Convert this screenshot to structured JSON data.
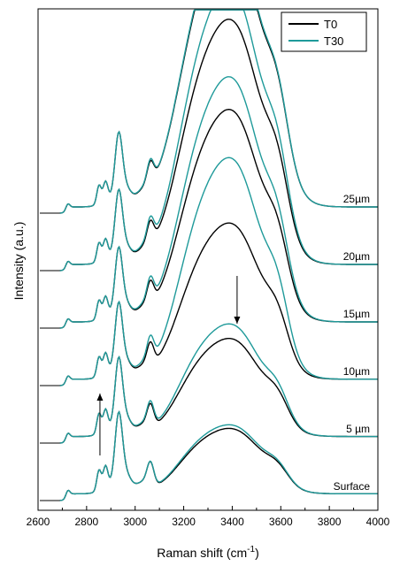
{
  "chart_data": {
    "type": "line",
    "xlabel": "Raman shift (cm",
    "xlabel_sup": "-1",
    "xlabel_close": ")",
    "ylabel": "Intensity (a.u.)",
    "xlim": [
      2600,
      4000
    ],
    "xticks": [
      "2600",
      "2800",
      "3000",
      "3200",
      "3400",
      "3600",
      "3800",
      "4000"
    ],
    "legend": {
      "position": "top-right",
      "entries": [
        {
          "label": "T0",
          "color": "#000000"
        },
        {
          "label": "T30",
          "color": "#1f9a9a"
        }
      ]
    },
    "arrows": [
      {
        "x": 2855,
        "direction": "up"
      },
      {
        "x": 3420,
        "direction": "down"
      }
    ],
    "offsets": [
      {
        "label": "Surface",
        "baseline": 0,
        "t0": {
          "ch": 0.34,
          "sh": 0.16,
          "oh": 0.36
        },
        "t30": {
          "ch": 0.34,
          "sh": 0.16,
          "oh": 0.38
        }
      },
      {
        "label": "5 µm",
        "baseline": 1,
        "t0": {
          "ch": 0.33,
          "sh": 0.15,
          "oh": 0.54
        },
        "t30": {
          "ch": 0.33,
          "sh": 0.16,
          "oh": 0.62
        }
      },
      {
        "label": "10µm",
        "baseline": 2,
        "t0": {
          "ch": 0.32,
          "sh": 0.15,
          "oh": 0.86
        },
        "t30": {
          "ch": 0.32,
          "sh": 0.16,
          "oh": 1.22
        }
      },
      {
        "label": "15µm",
        "baseline": 3,
        "t0": {
          "ch": 0.31,
          "sh": 0.15,
          "oh": 1.17
        },
        "t30": {
          "ch": 0.31,
          "sh": 0.16,
          "oh": 1.35
        }
      },
      {
        "label": "20µm",
        "baseline": 4,
        "t0": {
          "ch": 0.31,
          "sh": 0.15,
          "oh": 1.35
        },
        "t30": {
          "ch": 0.31,
          "sh": 0.16,
          "oh": 1.53
        }
      },
      {
        "label": "25µm",
        "baseline": 5,
        "t0": {
          "ch": 0.31,
          "sh": 0.15,
          "oh": 1.5
        },
        "t30": {
          "ch": 0.31,
          "sh": 0.16,
          "oh": 1.52
        }
      }
    ]
  }
}
